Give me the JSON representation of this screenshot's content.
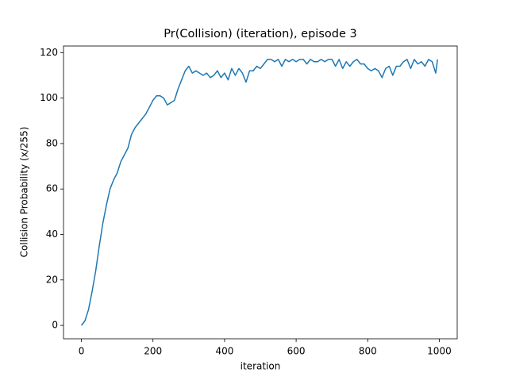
{
  "chart_data": {
    "type": "line",
    "title": "Pr(Collision) (iteration), episode 3",
    "x_label": "iteration",
    "y_label": "Collision Probability (x/255)",
    "x": [
      0,
      10,
      20,
      30,
      40,
      50,
      60,
      70,
      80,
      90,
      100,
      110,
      120,
      130,
      140,
      150,
      160,
      170,
      180,
      190,
      200,
      210,
      220,
      230,
      240,
      250,
      260,
      270,
      280,
      290,
      300,
      310,
      320,
      330,
      340,
      350,
      360,
      370,
      380,
      390,
      400,
      410,
      420,
      430,
      440,
      450,
      460,
      470,
      480,
      490,
      500,
      510,
      520,
      530,
      540,
      550,
      560,
      570,
      580,
      590,
      600,
      610,
      620,
      630,
      640,
      650,
      660,
      670,
      680,
      690,
      700,
      710,
      720,
      730,
      740,
      750,
      760,
      770,
      780,
      790,
      800,
      810,
      820,
      830,
      840,
      850,
      860,
      870,
      880,
      890,
      900,
      910,
      920,
      930,
      940,
      950,
      960,
      970,
      980,
      990,
      995
    ],
    "values": [
      0,
      2,
      7,
      15,
      24,
      35,
      45,
      53,
      60,
      64,
      67,
      72,
      75,
      78,
      84,
      87,
      89,
      91,
      93,
      96,
      99,
      101,
      101,
      100,
      97,
      98,
      99,
      104,
      108,
      112,
      114,
      111,
      112,
      111,
      110,
      111,
      109,
      110,
      112,
      109,
      111,
      108,
      113,
      110,
      113,
      111,
      107,
      112,
      112,
      114,
      113,
      115,
      117,
      117,
      116,
      117,
      114,
      117,
      116,
      117,
      116,
      117,
      117,
      115,
      117,
      116,
      116,
      117,
      116,
      117,
      117,
      114,
      117,
      113,
      116,
      114,
      116,
      117,
      115,
      115,
      113,
      112,
      113,
      112,
      109,
      113,
      114,
      110,
      114,
      114,
      116,
      117,
      113,
      117,
      115,
      116,
      114,
      117,
      116,
      111,
      117
    ],
    "color": "#1f77b4",
    "xlim": [
      -50,
      1050
    ],
    "xticks": [
      0,
      200,
      400,
      600,
      800,
      1000
    ],
    "ylim": [
      -5.9,
      122.9
    ],
    "yticks": [
      0,
      20,
      40,
      60,
      80,
      100,
      120
    ],
    "grid": false
  }
}
